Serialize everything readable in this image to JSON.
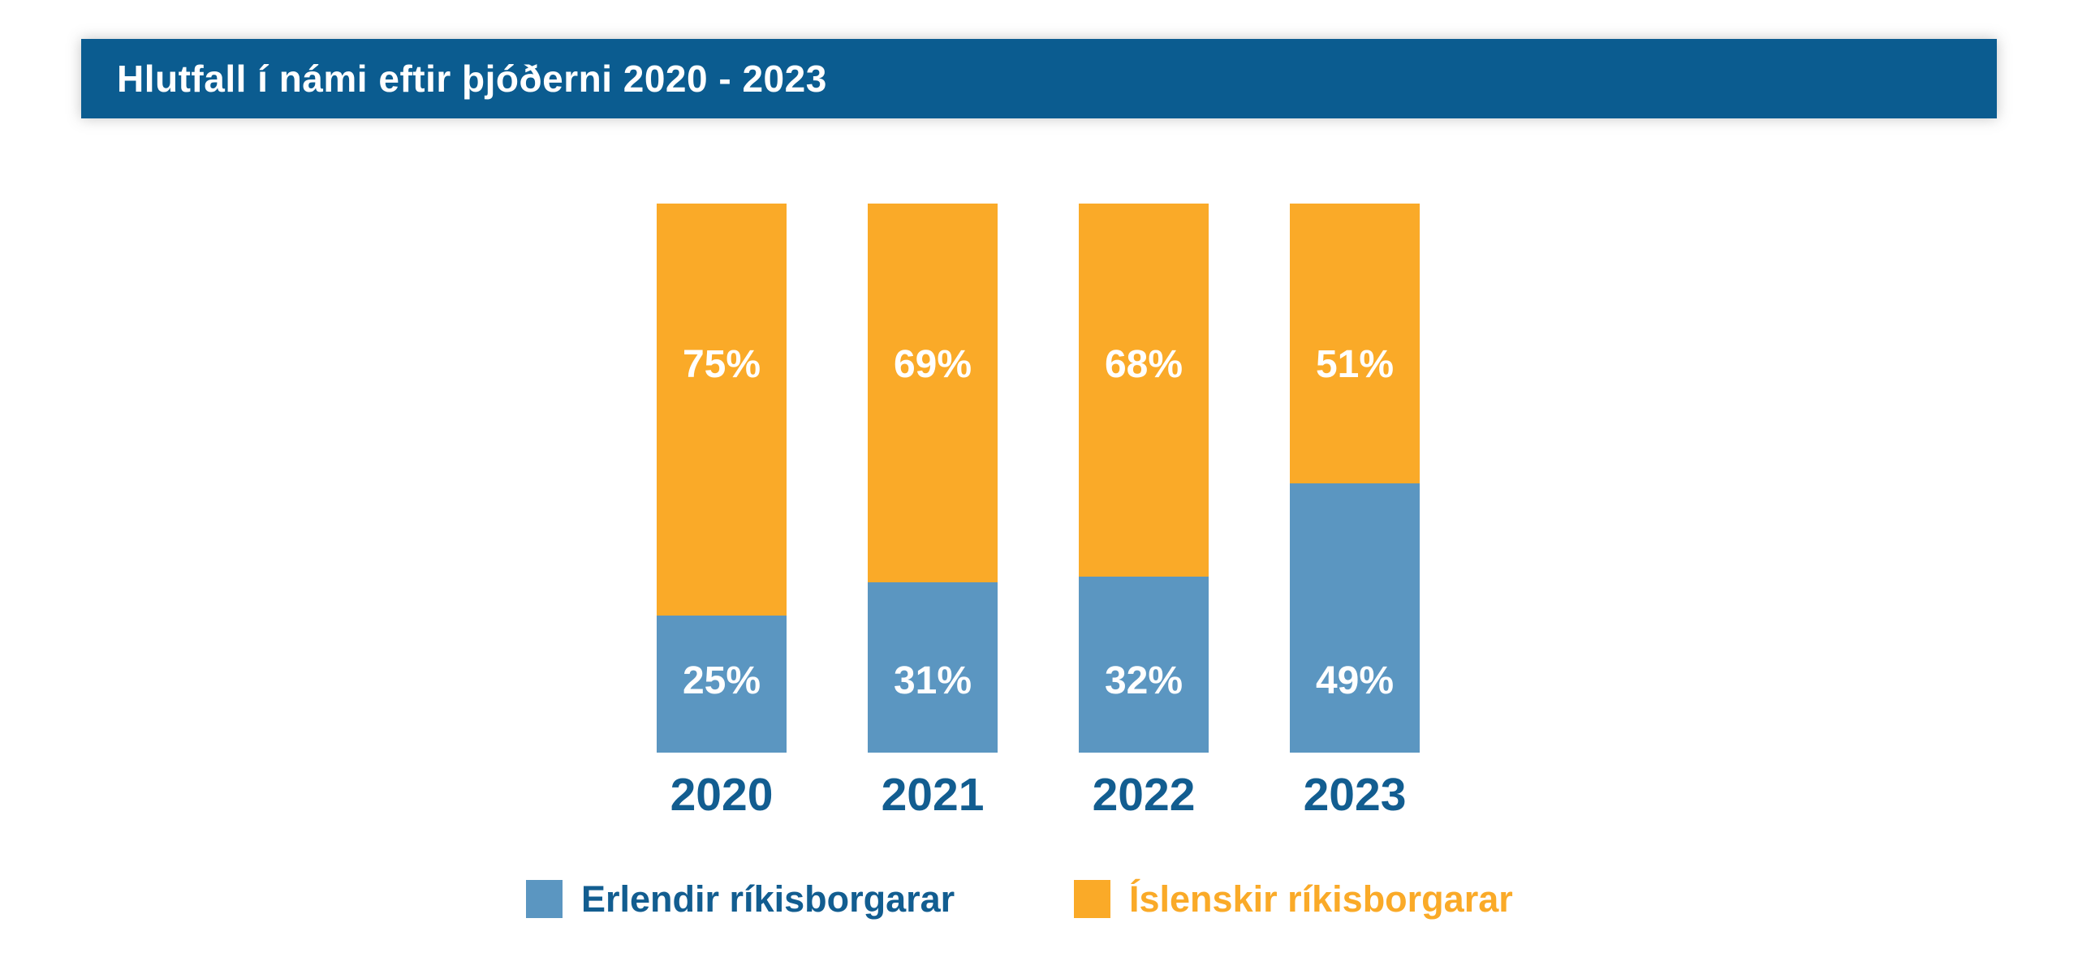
{
  "header": {
    "title": "Hlutfall í námi eftir þjóðerni 2020 - 2023",
    "background": "#0B5C90",
    "text_color": "#FFFFFF"
  },
  "chart_data": {
    "type": "bar",
    "subtype": "stacked-percent-column",
    "title": "Hlutfall í námi eftir þjóðerni 2020 - 2023",
    "categories": [
      "2020",
      "2021",
      "2022",
      "2023"
    ],
    "series": [
      {
        "name": "Erlendir ríkisborgarar",
        "color": "#5B96C1",
        "values": [
          25,
          31,
          32,
          49
        ]
      },
      {
        "name": "Íslenskir ríkisborgarar",
        "color": "#FAAA28",
        "values": [
          75,
          69,
          68,
          51
        ]
      }
    ],
    "stack_order_bottom_to_top": [
      "Erlendir ríkisborgarar",
      "Íslenskir ríkisborgarar"
    ],
    "value_suffix": "%",
    "value_label_color": "#FFFFFF",
    "xtick_color": "#125D90",
    "ylim": [
      0,
      100
    ],
    "y_axis_shown": false,
    "grid": false,
    "legend_position": "bottom"
  },
  "legend": {
    "items": [
      {
        "label": "Erlendir ríkisborgarar",
        "swatch_color": "#5B96C1",
        "label_color": "#125D90"
      },
      {
        "label": "Íslenskir ríkisborgarar",
        "swatch_color": "#FAAA28",
        "label_color": "#FAAA28"
      }
    ]
  }
}
